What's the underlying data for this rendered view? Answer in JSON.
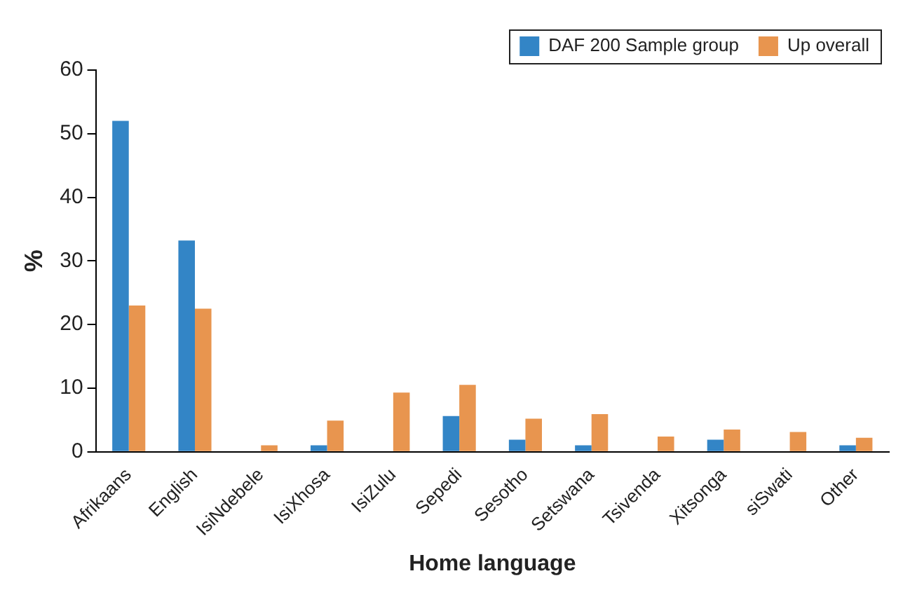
{
  "chart_data": {
    "type": "bar",
    "xlabel": "Home language",
    "ylabel": "%",
    "categories": [
      "Afrikaans",
      "English",
      "IsiNdebele",
      "IsiXhosa",
      "IsiZulu",
      "Sepedi",
      "Sesotho",
      "Setswana",
      "Tsivenda",
      "Xitsonga",
      "siSwati",
      "Other"
    ],
    "series": [
      {
        "name": "DAF 200 Sample group",
        "color": "#3385c6",
        "values": [
          52,
          33.2,
          0,
          1,
          0,
          5.6,
          1.9,
          1,
          0,
          1.9,
          0,
          1
        ]
      },
      {
        "name": "Up overall",
        "color": "#e8954f",
        "values": [
          23,
          22.5,
          1,
          4.9,
          9.3,
          10.5,
          5.2,
          5.9,
          2.4,
          3.5,
          3.1,
          2.2
        ]
      }
    ],
    "ylim": [
      0,
      60
    ],
    "yticks": [
      0,
      10,
      20,
      30,
      40,
      50,
      60
    ],
    "grid": false,
    "legend": "top right"
  }
}
